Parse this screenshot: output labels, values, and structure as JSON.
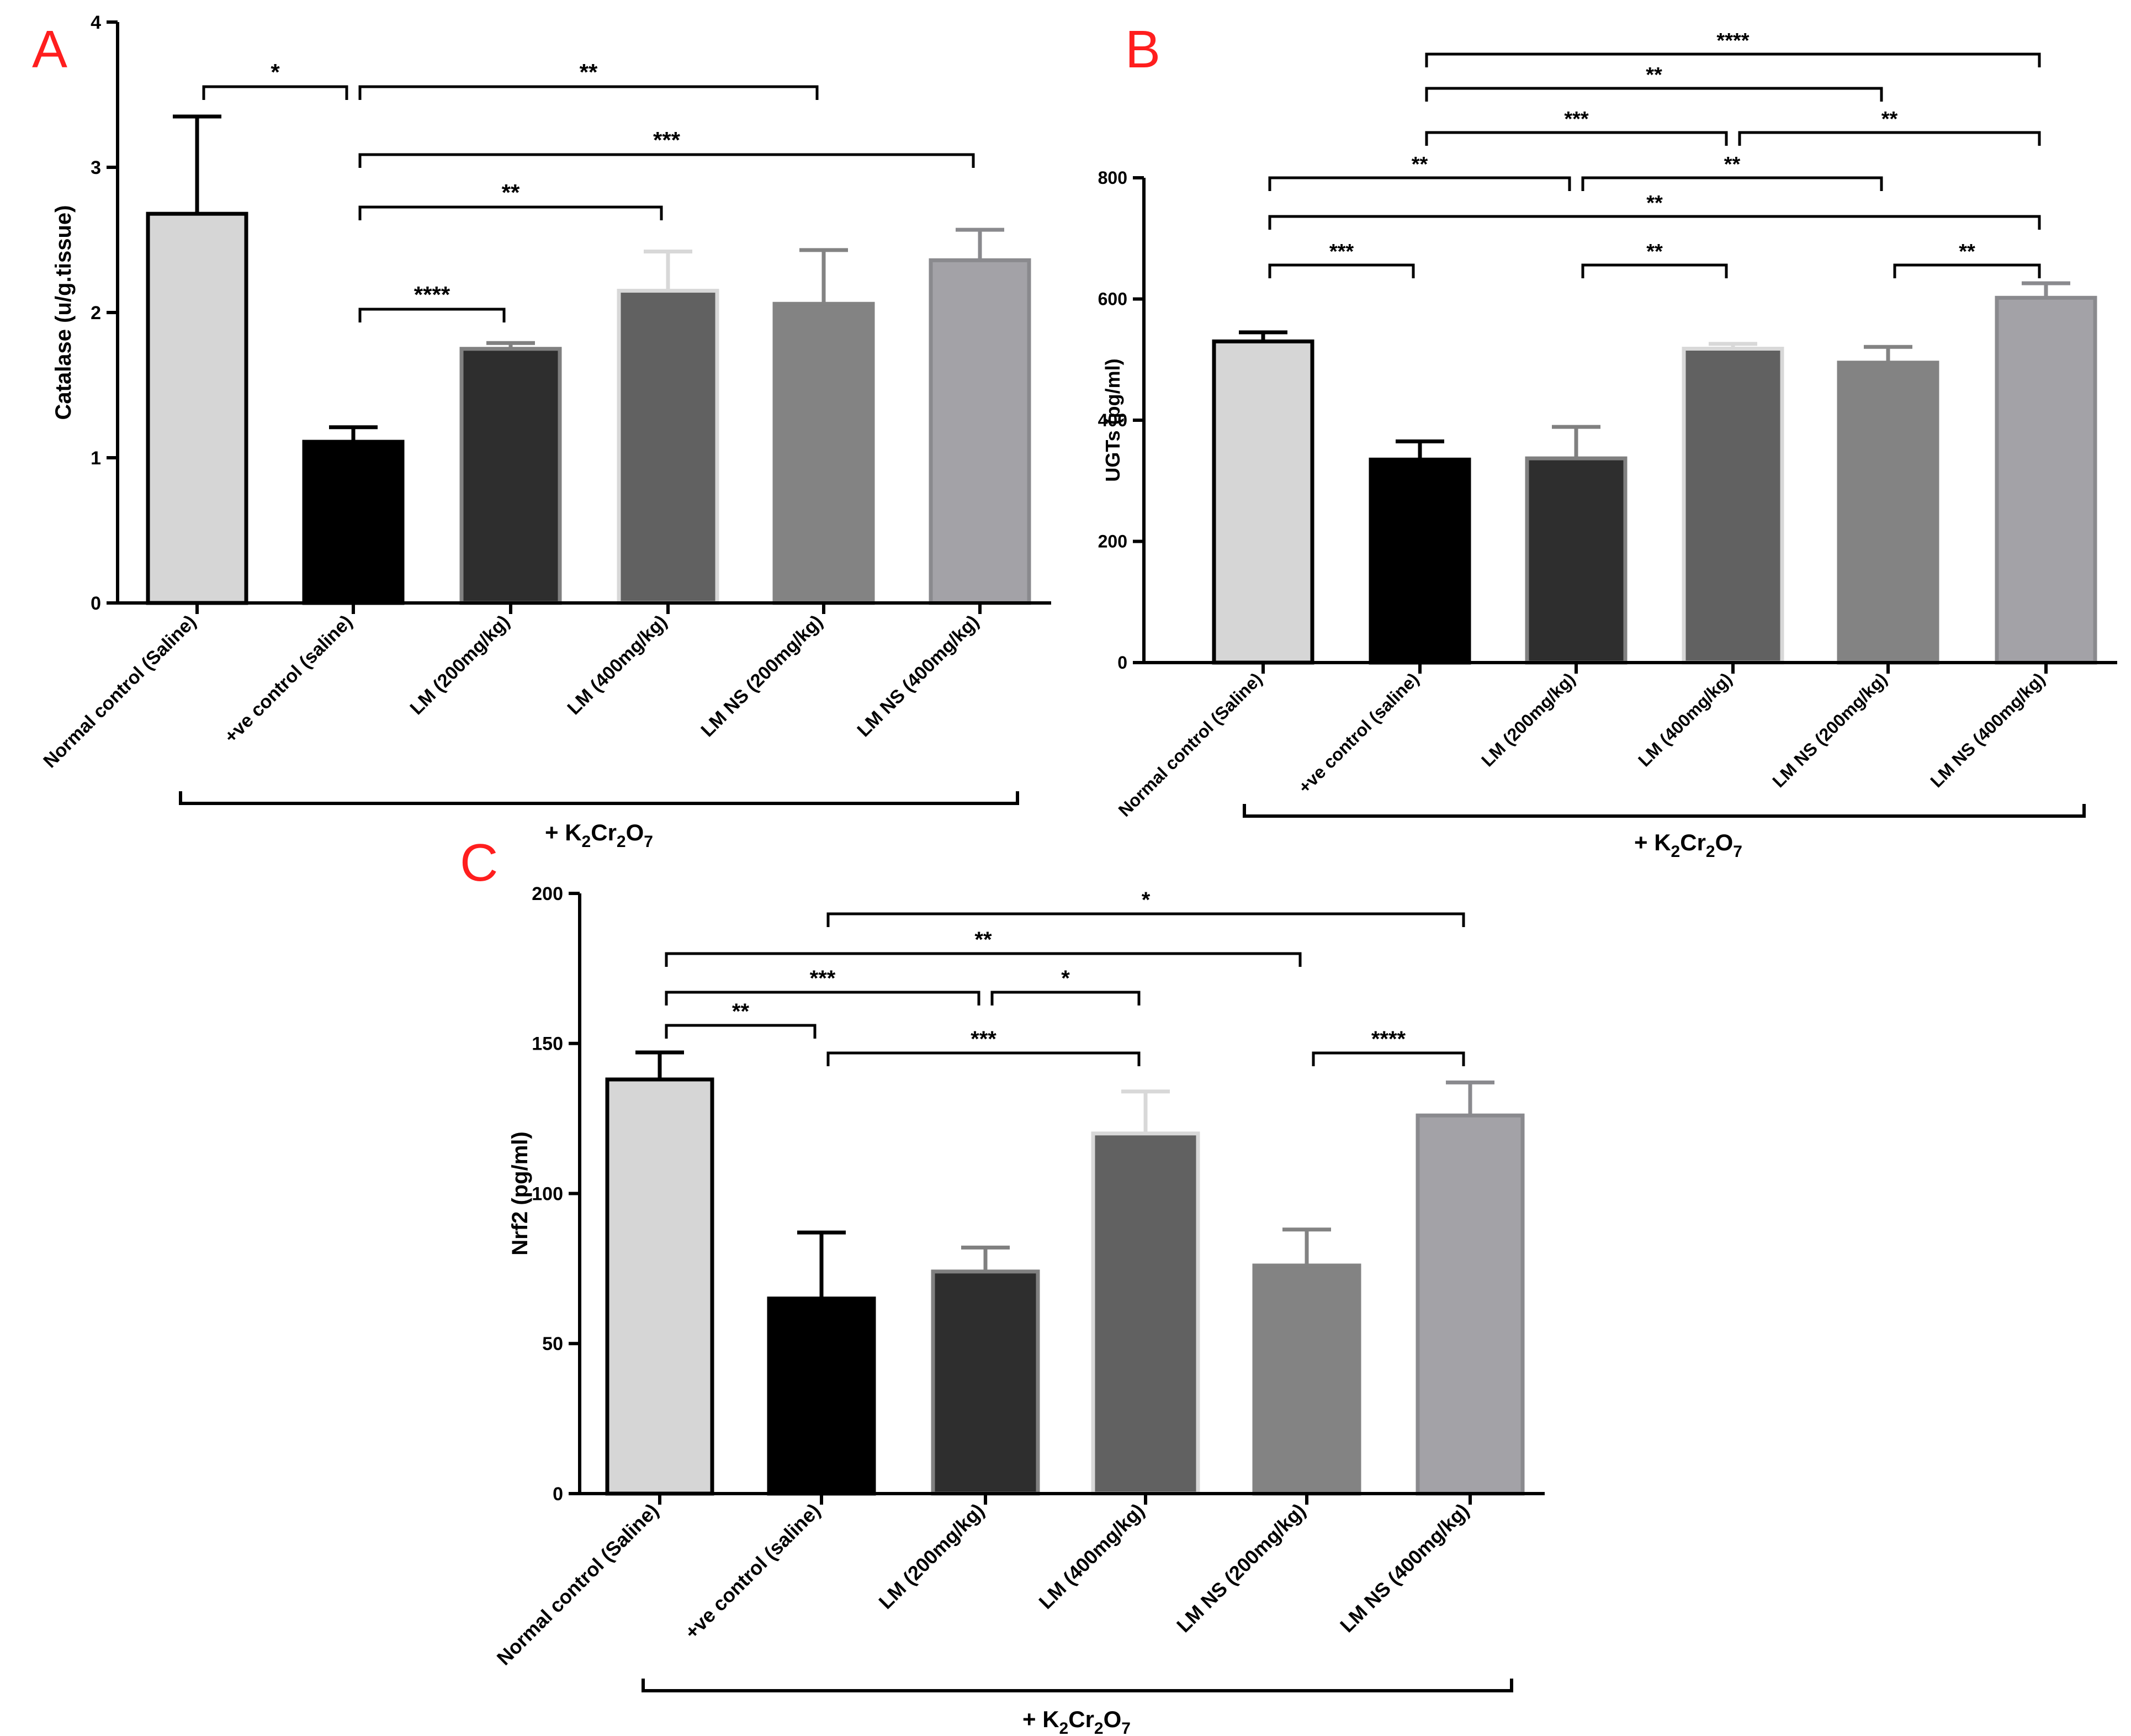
{
  "colors": {
    "bars": [
      "#d6d6d6",
      "#000000",
      "#2e2e2e",
      "#616161",
      "#838383",
      "#a3a2a7"
    ],
    "bar_strokes": [
      "#000000",
      "#000000",
      "#808080",
      "#d8d8d8",
      "#838383",
      "#8a8a8e"
    ],
    "panel_letter": "#ff1e1e"
  },
  "group_label": {
    "prefix": "+ K",
    "s1": "2",
    "cr": "Cr",
    "s2": "2",
    "o": "O",
    "s3": "7"
  },
  "chart_data": [
    {
      "type": "bar",
      "panel": "A",
      "ylabel": "Catalase (u/g.tissue)",
      "ylim": [
        0,
        4
      ],
      "yticks": [
        0,
        1,
        2,
        3,
        4
      ],
      "categories": [
        "Normal control (Saline)",
        "+ve control (saline)",
        "LM (200mg/kg)",
        "LM (400mg/kg)",
        "LM NS (200mg/kg)",
        "LM NS (400mg/kg)"
      ],
      "values": [
        2.68,
        1.11,
        1.75,
        2.15,
        2.06,
        2.36
      ],
      "errors": [
        0.67,
        0.1,
        0.04,
        0.27,
        0.37,
        0.21
      ],
      "significance": [
        {
          "from": 0,
          "to": 1,
          "label": "*"
        },
        {
          "from": 1,
          "to": 4,
          "label": "**"
        },
        {
          "from": 1,
          "to": 5,
          "label": "***"
        },
        {
          "from": 1,
          "to": 3,
          "label": "**"
        },
        {
          "from": 1,
          "to": 2,
          "label": "****"
        }
      ]
    },
    {
      "type": "bar",
      "panel": "B",
      "ylabel": "UGTs (pg/ml)",
      "ylim": [
        0,
        800
      ],
      "yticks": [
        0,
        200,
        400,
        600,
        800
      ],
      "categories": [
        "Normal control (Saline)",
        "+ve control (saline)",
        "LM (200mg/kg)",
        "LM (400mg/kg)",
        "LM NS (200mg/kg)",
        "LM NS (400mg/kg)"
      ],
      "values": [
        530,
        335,
        337,
        518,
        495,
        602
      ],
      "errors": [
        15,
        30,
        52,
        8,
        26,
        24
      ],
      "significance": [
        {
          "from": 1,
          "to": 5,
          "label": "****"
        },
        {
          "from": 1,
          "to": 4,
          "label": "**"
        },
        {
          "from": 1,
          "to": 3,
          "label": "***"
        },
        {
          "from": 3,
          "to": 5,
          "label": "**"
        },
        {
          "from": 0,
          "to": 2,
          "label": "**"
        },
        {
          "from": 2,
          "to": 4,
          "label": "**"
        },
        {
          "from": 0,
          "to": 5,
          "label": "**"
        },
        {
          "from": 0,
          "to": 1,
          "label": "***"
        },
        {
          "from": 2,
          "to": 3,
          "label": "**"
        },
        {
          "from": 4,
          "to": 5,
          "label": "**"
        }
      ]
    },
    {
      "type": "bar",
      "panel": "C",
      "ylabel": "Nrf2 (pg/ml)",
      "ylim": [
        0,
        200
      ],
      "yticks": [
        0,
        50,
        100,
        150,
        200
      ],
      "categories": [
        "Normal control (Saline)",
        "+ve control (saline)",
        "LM (200mg/kg)",
        "LM (400mg/kg)",
        "LM NS (200mg/kg)",
        "LM NS (400mg/kg)"
      ],
      "values": [
        138,
        65,
        74,
        120,
        76,
        126
      ],
      "errors": [
        9,
        22,
        8,
        14,
        12,
        11
      ],
      "significance": [
        {
          "from": 1,
          "to": 5,
          "label": "*"
        },
        {
          "from": 0,
          "to": 4,
          "label": "**"
        },
        {
          "from": 0,
          "to": 2,
          "label": "***"
        },
        {
          "from": 2,
          "to": 3,
          "label": "*"
        },
        {
          "from": 0,
          "to": 1,
          "label": "**"
        },
        {
          "from": 1,
          "to": 3,
          "label": "***"
        },
        {
          "from": 4,
          "to": 5,
          "label": "****"
        }
      ]
    }
  ]
}
